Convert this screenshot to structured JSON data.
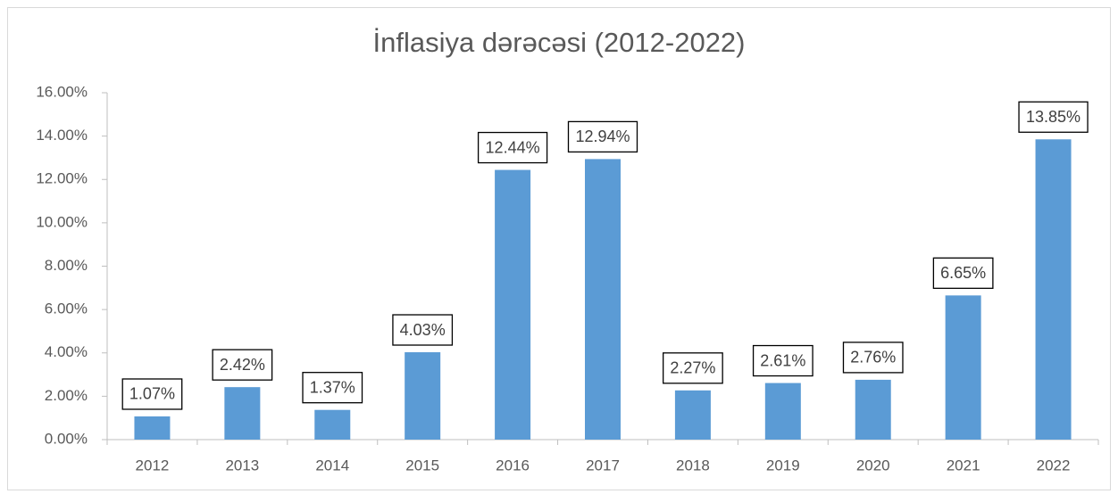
{
  "chart_data": {
    "type": "bar",
    "title": "İnflasiya dərəcəsi (2012-2022)",
    "categories": [
      "2012",
      "2013",
      "2014",
      "2015",
      "2016",
      "2017",
      "2018",
      "2019",
      "2020",
      "2021",
      "2022"
    ],
    "values": [
      1.07,
      2.42,
      1.37,
      4.03,
      12.44,
      12.94,
      2.27,
      2.61,
      2.76,
      6.65,
      13.85
    ],
    "value_labels": [
      "1.07%",
      "2.42%",
      "1.37%",
      "4.03%",
      "12.44%",
      "12.94%",
      "2.27%",
      "2.61%",
      "2.76%",
      "6.65%",
      "13.85%"
    ],
    "color": "#5b9bd5",
    "ylim": [
      0,
      16
    ],
    "yticks": [
      {
        "value": 0,
        "label": "0.00%"
      },
      {
        "value": 2,
        "label": "2.00%"
      },
      {
        "value": 4,
        "label": "4.00%"
      },
      {
        "value": 6,
        "label": "6.00%"
      },
      {
        "value": 8,
        "label": "8.00%"
      },
      {
        "value": 10,
        "label": "10.00%"
      },
      {
        "value": 12,
        "label": "12.00%"
      },
      {
        "value": 14,
        "label": "14.00%"
      },
      {
        "value": 16,
        "label": "16.00%"
      }
    ],
    "grid": false
  }
}
